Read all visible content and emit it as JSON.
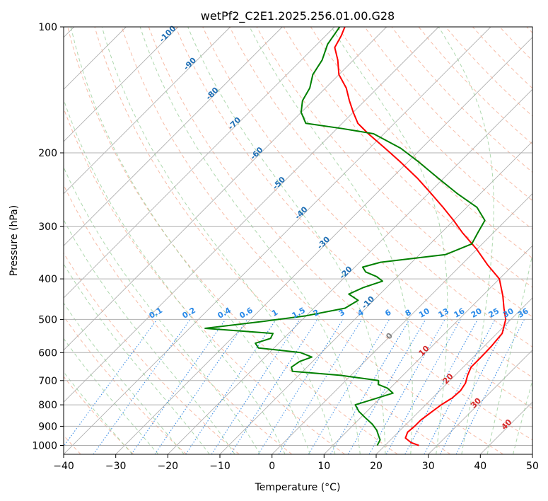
{
  "chart_data": {
    "type": "line",
    "title": "wetPf2_C2E1.2025.256.01.00.G28",
    "xlabel": "Temperature (°C)",
    "ylabel": "Pressure (hPa)",
    "xlim": [
      -40,
      50
    ],
    "ylim": [
      1050,
      100
    ],
    "y_scale": "log",
    "x_ticks": [
      -40,
      -30,
      -20,
      -10,
      0,
      10,
      20,
      30,
      40,
      50
    ],
    "y_ticks": [
      100,
      200,
      300,
      400,
      500,
      600,
      700,
      800,
      900,
      1000
    ],
    "grid": true,
    "skew": 45,
    "dry_adiabat_labels": [
      "-100",
      "-90",
      "-80",
      "-70",
      "-60",
      "-50",
      "-40",
      "-30",
      "-20",
      "-10",
      "0",
      "10",
      "20",
      "30",
      "40"
    ],
    "mixing_ratio_labels": [
      "0.1",
      "0.2",
      "0.4",
      "0.6",
      "1",
      "1.5",
      "2",
      "3",
      "4",
      "6",
      "8",
      "10",
      "13",
      "16",
      "20",
      "25",
      "30",
      "36"
    ],
    "series": [
      {
        "color": "#ff0000",
        "values": [
          [
            1000,
            26.5
          ],
          [
            985,
            24.5
          ],
          [
            960,
            22.5
          ],
          [
            930,
            21.8
          ],
          [
            900,
            22.0
          ],
          [
            870,
            22.0
          ],
          [
            840,
            22.4
          ],
          [
            800,
            23.0
          ],
          [
            770,
            23.8
          ],
          [
            740,
            24.0
          ],
          [
            710,
            23.5
          ],
          [
            680,
            22.4
          ],
          [
            650,
            21.5
          ],
          [
            620,
            21.5
          ],
          [
            580,
            21.4
          ],
          [
            540,
            21.0
          ],
          [
            500,
            19.0
          ],
          [
            470,
            16.5
          ],
          [
            440,
            14.0
          ],
          [
            400,
            10.0
          ],
          [
            370,
            5.0
          ],
          [
            340,
            0.0
          ],
          [
            310,
            -6.0
          ],
          [
            290,
            -10.0
          ],
          [
            270,
            -14.5
          ],
          [
            250,
            -19.5
          ],
          [
            230,
            -25.0
          ],
          [
            210,
            -31.5
          ],
          [
            195,
            -37.0
          ],
          [
            180,
            -43.0
          ],
          [
            170,
            -47.0
          ],
          [
            160,
            -50.0
          ],
          [
            150,
            -53.0
          ],
          [
            140,
            -56.0
          ],
          [
            130,
            -60.0
          ],
          [
            120,
            -63.0
          ],
          [
            112,
            -66.0
          ],
          [
            105,
            -67.0
          ],
          [
            100,
            -68.0
          ]
        ]
      },
      {
        "color": "#008000",
        "values": [
          [
            1000,
            18.5
          ],
          [
            970,
            18.0
          ],
          [
            950,
            17.0
          ],
          [
            920,
            15.5
          ],
          [
            890,
            13.5
          ],
          [
            860,
            11.0
          ],
          [
            830,
            8.5
          ],
          [
            800,
            6.5
          ],
          [
            780,
            8.5
          ],
          [
            750,
            11.5
          ],
          [
            730,
            9.5
          ],
          [
            715,
            7.0
          ],
          [
            700,
            6.3
          ],
          [
            680,
            -2.0
          ],
          [
            665,
            -12.0
          ],
          [
            650,
            -13.0
          ],
          [
            630,
            -12.5
          ],
          [
            615,
            -11.0
          ],
          [
            600,
            -14.0
          ],
          [
            585,
            -23.0
          ],
          [
            570,
            -24.5
          ],
          [
            555,
            -22.5
          ],
          [
            540,
            -23.0
          ],
          [
            525,
            -37.0
          ],
          [
            505,
            -27.0
          ],
          [
            490,
            -20.0
          ],
          [
            470,
            -14.0
          ],
          [
            450,
            -13.0
          ],
          [
            435,
            -16.0
          ],
          [
            420,
            -14.5
          ],
          [
            405,
            -12.0
          ],
          [
            395,
            -14.0
          ],
          [
            385,
            -17.0
          ],
          [
            375,
            -18.5
          ],
          [
            365,
            -16.0
          ],
          [
            350,
            -5.0
          ],
          [
            330,
            -2.0
          ],
          [
            310,
            -3.0
          ],
          [
            290,
            -4.0
          ],
          [
            270,
            -8.0
          ],
          [
            250,
            -14.5
          ],
          [
            230,
            -21.0
          ],
          [
            210,
            -28.0
          ],
          [
            195,
            -34.0
          ],
          [
            180,
            -42.0
          ],
          [
            175,
            -49.0
          ],
          [
            170,
            -57.0
          ],
          [
            160,
            -60.0
          ],
          [
            150,
            -62.0
          ],
          [
            140,
            -63.0
          ],
          [
            130,
            -65.0
          ],
          [
            120,
            -66.0
          ],
          [
            110,
            -68.0
          ],
          [
            100,
            -69.0
          ]
        ]
      }
    ]
  }
}
